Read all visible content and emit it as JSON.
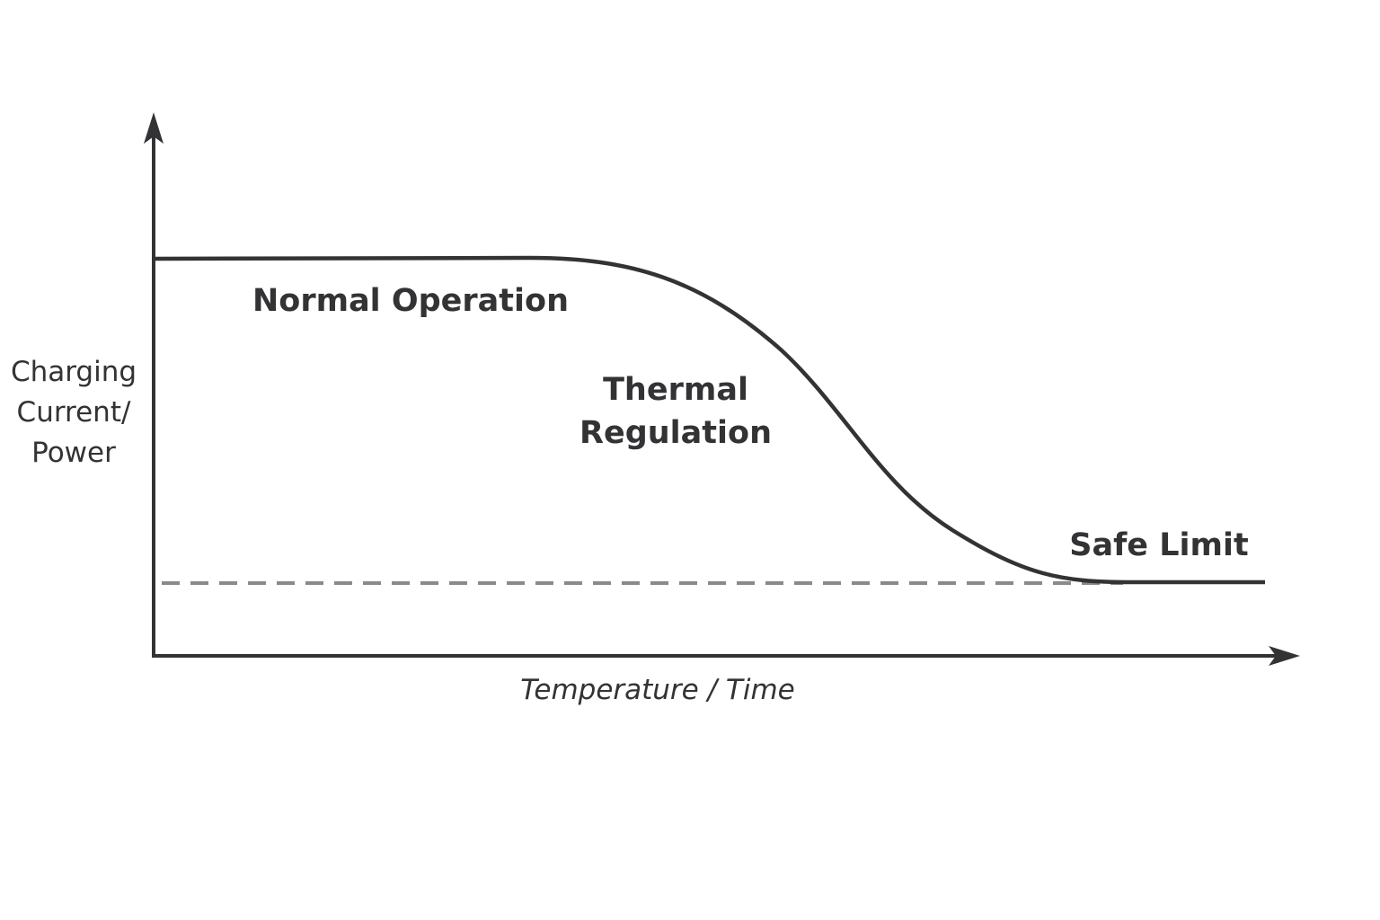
{
  "labels": {
    "normal": "Normal Operation",
    "thermal_line1": "Thermal",
    "thermal_line2": "Regulation",
    "safe": "Safe Limit"
  },
  "axes": {
    "y_line1": "Charging",
    "y_line2": "Current/",
    "y_line3": "Power",
    "x": "Temperature / Time"
  },
  "colors": {
    "curve": "#333336",
    "axis": "#333336",
    "safe_limit_dashed": "#8a8a8a"
  }
}
